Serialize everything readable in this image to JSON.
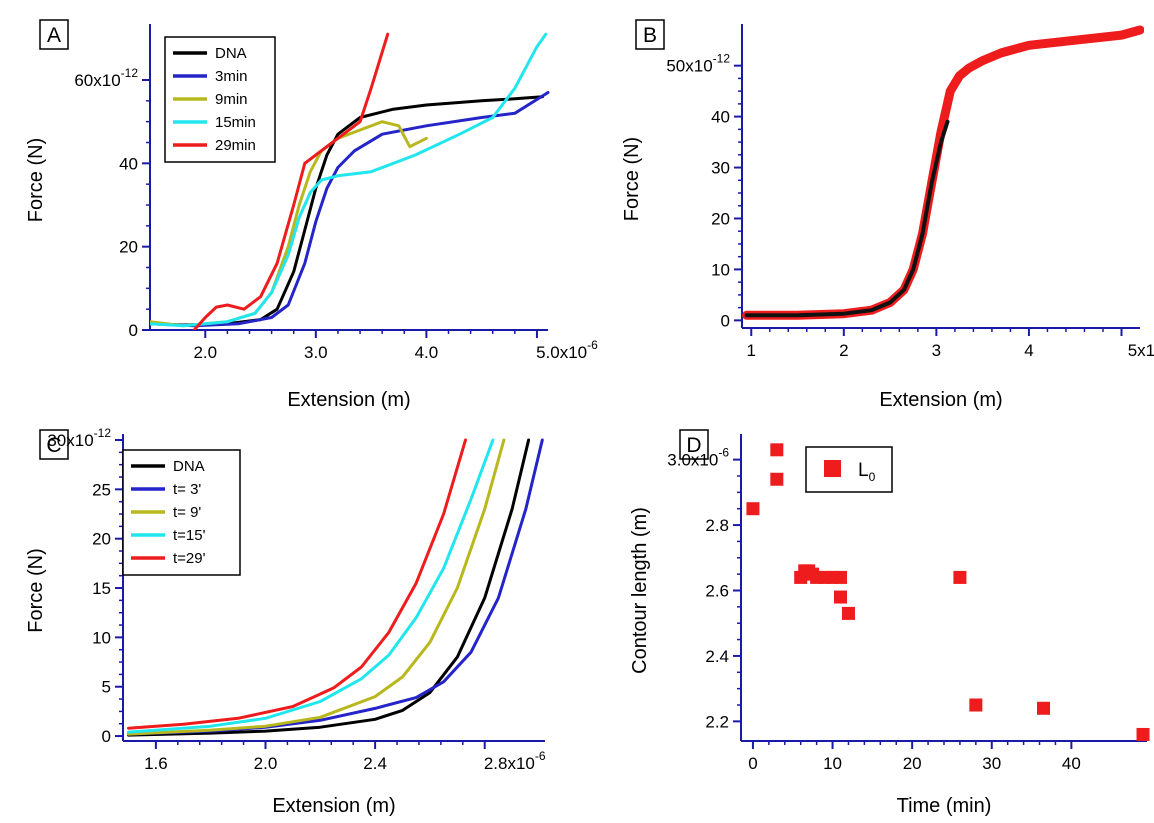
{
  "colors": {
    "axis": "#1a1aa8",
    "DNA": "#000000",
    "3min": "#2424c8",
    "9min": "#b8b81e",
    "15min": "#22e6ee",
    "29min": "#ee1c1c",
    "L0": "#ee1c1c",
    "fitline": "#111111"
  },
  "chart_data": [
    {
      "panel": "A",
      "type": "line",
      "grid": false,
      "legend_position": "top-left",
      "xlabel": "Extension (m)",
      "ylabel": "Force (N)",
      "xlim": [
        1.5e-06,
        5.1e-06
      ],
      "ylim": [
        0,
        7.2e-11
      ],
      "x_ticks": [
        {
          "value": 2e-06,
          "label": "2.0"
        },
        {
          "value": 3e-06,
          "label": "3.0"
        },
        {
          "value": 4e-06,
          "label": "4.0"
        },
        {
          "value": 5e-06,
          "label": "5.0x10",
          "exp": "-6"
        }
      ],
      "y_ticks": [
        {
          "value": 0,
          "label": "0"
        },
        {
          "value": 2e-11,
          "label": "20"
        },
        {
          "value": 4e-11,
          "label": "40"
        },
        {
          "value": 6e-11,
          "label": "60x10",
          "exp": "-12"
        }
      ],
      "series": [
        {
          "name": "DNA",
          "color": "#000000",
          "x": [
            1.5e-06,
            1.8e-06,
            2.2e-06,
            2.5e-06,
            2.65e-06,
            2.8e-06,
            2.9e-06,
            3e-06,
            3.1e-06,
            3.2e-06,
            3.4e-06,
            3.7e-06,
            4e-06,
            4.5e-06,
            4.8e-06,
            5.05e-06
          ],
          "y": [
            1.5e-12,
            1.2e-12,
            1.5e-12,
            2.5e-12,
            5e-12,
            1.4e-11,
            2.4e-11,
            3.4e-11,
            4.2e-11,
            4.7e-11,
            5.1e-11,
            5.3e-11,
            5.4e-11,
            5.5e-11,
            5.55e-11,
            5.6e-11
          ]
        },
        {
          "name": "3min",
          "color": "#2424c8",
          "x": [
            1.5e-06,
            1.9e-06,
            2.3e-06,
            2.6e-06,
            2.75e-06,
            2.9e-06,
            3e-06,
            3.1e-06,
            3.2e-06,
            3.35e-06,
            3.6e-06,
            4e-06,
            4.5e-06,
            4.8e-06,
            5.1e-06
          ],
          "y": [
            1.5e-12,
            1e-12,
            1.5e-12,
            3e-12,
            6e-12,
            1.6e-11,
            2.6e-11,
            3.4e-11,
            3.9e-11,
            4.3e-11,
            4.7e-11,
            4.9e-11,
            5.1e-11,
            5.2e-11,
            5.7e-11
          ]
        },
        {
          "name": "9min",
          "color": "#b8b81e",
          "x": [
            1.5e-06,
            1.8e-06,
            2.2e-06,
            2.45e-06,
            2.6e-06,
            2.75e-06,
            2.85e-06,
            2.95e-06,
            3.05e-06,
            3.2e-06,
            3.4e-06,
            3.6e-06,
            3.75e-06,
            3.85e-06,
            4e-06
          ],
          "y": [
            2e-12,
            1e-12,
            2e-12,
            4e-12,
            9e-12,
            2e-11,
            3e-11,
            3.8e-11,
            4.3e-11,
            4.6e-11,
            4.8e-11,
            5e-11,
            4.9e-11,
            4.4e-11,
            4.6e-11
          ]
        },
        {
          "name": "15min",
          "color": "#22e6ee",
          "x": [
            1.5e-06,
            1.8e-06,
            2.2e-06,
            2.45e-06,
            2.6e-06,
            2.75e-06,
            2.85e-06,
            2.95e-06,
            3.05e-06,
            3.2e-06,
            3.5e-06,
            3.9e-06,
            4.3e-06,
            4.6e-06,
            4.8e-06,
            5e-06,
            5.08e-06
          ],
          "y": [
            1.5e-12,
            1e-12,
            2e-12,
            4e-12,
            9e-12,
            1.8e-11,
            2.7e-11,
            3.3e-11,
            3.6e-11,
            3.7e-11,
            3.8e-11,
            4.2e-11,
            4.7e-11,
            5.1e-11,
            5.8e-11,
            6.8e-11,
            7.1e-11
          ]
        },
        {
          "name": "29min",
          "color": "#ee1c1c",
          "x": [
            1.9e-06,
            2e-06,
            2.1e-06,
            2.2e-06,
            2.35e-06,
            2.5e-06,
            2.65e-06,
            2.8e-06,
            2.9e-06,
            3e-06,
            3.2e-06,
            3.4e-06,
            3.5e-06,
            3.65e-06
          ],
          "y": [
            0,
            3e-12,
            5.5e-12,
            6e-12,
            5e-12,
            8e-12,
            1.6e-11,
            3e-11,
            4e-11,
            4.2e-11,
            4.6e-11,
            5e-11,
            5.8e-11,
            7.1e-11
          ]
        }
      ]
    },
    {
      "panel": "B",
      "type": "line",
      "grid": false,
      "xlabel": "Extension (m)",
      "ylabel": "Force (N)",
      "xlim": [
        9e-07,
        5.2e-06
      ],
      "ylim": [
        -1.5e-12,
        5.7e-11
      ],
      "x_ticks": [
        {
          "value": 1e-06,
          "label": "1"
        },
        {
          "value": 2e-06,
          "label": "2"
        },
        {
          "value": 3e-06,
          "label": "3"
        },
        {
          "value": 4e-06,
          "label": "4"
        },
        {
          "value": 5e-06,
          "label": "5x10",
          "exp": "-6"
        }
      ],
      "y_ticks": [
        {
          "value": 0,
          "label": "0"
        },
        {
          "value": 1e-11,
          "label": "10"
        },
        {
          "value": 2e-11,
          "label": "20"
        },
        {
          "value": 3e-11,
          "label": "30"
        },
        {
          "value": 4e-11,
          "label": "40"
        },
        {
          "value": 5e-11,
          "label": "50x10",
          "exp": "-12"
        }
      ],
      "series": [
        {
          "name": "",
          "color": "#ee1c1c",
          "x": [
            9.5e-07,
            1.5e-06,
            2e-06,
            2.3e-06,
            2.5e-06,
            2.65e-06,
            2.75e-06,
            2.85e-06,
            2.95e-06,
            3.05e-06,
            3.15e-06,
            3.25e-06,
            3.35e-06,
            3.5e-06,
            3.7e-06,
            4e-06,
            4.5e-06,
            5e-06,
            5.2e-06
          ],
          "y": [
            1e-12,
            1e-12,
            1.3e-12,
            2e-12,
            3.5e-12,
            6e-12,
            1e-11,
            1.7e-11,
            2.7e-11,
            3.7e-11,
            4.5e-11,
            4.8e-11,
            4.95e-11,
            5.1e-11,
            5.25e-11,
            5.4e-11,
            5.5e-11,
            5.6e-11,
            5.7e-11
          ]
        },
        {
          "name": "",
          "color": "#111111",
          "x": [
            9.5e-07,
            1.5e-06,
            2e-06,
            2.3e-06,
            2.5e-06,
            2.65e-06,
            2.75e-06,
            2.85e-06,
            2.95e-06,
            3.05e-06,
            3.12e-06
          ],
          "y": [
            1e-12,
            1e-12,
            1.3e-12,
            2e-12,
            3.5e-12,
            6e-12,
            1e-11,
            1.7e-11,
            2.7e-11,
            3.5e-11,
            3.9e-11
          ]
        }
      ]
    },
    {
      "panel": "C",
      "type": "line",
      "grid": false,
      "legend_position": "top-left",
      "xlabel": "Extension (m)",
      "ylabel": "Force (N)",
      "xlim": [
        1.48e-06,
        3.02e-06
      ],
      "ylim": [
        -5e-13,
        3e-11
      ],
      "x_ticks": [
        {
          "value": 1.6e-06,
          "label": "1.6"
        },
        {
          "value": 2e-06,
          "label": "2.0"
        },
        {
          "value": 2.4e-06,
          "label": "2.4"
        },
        {
          "value": 2.8e-06,
          "label": "2.8x10",
          "exp": "-6"
        }
      ],
      "y_ticks": [
        {
          "value": 0,
          "label": "0"
        },
        {
          "value": 5e-12,
          "label": "5"
        },
        {
          "value": 1e-11,
          "label": "10"
        },
        {
          "value": 1.5e-11,
          "label": "15"
        },
        {
          "value": 2e-11,
          "label": "20"
        },
        {
          "value": 2.5e-11,
          "label": "25"
        },
        {
          "value": 3e-11,
          "label": "30x10",
          "exp": "-12"
        }
      ],
      "series": [
        {
          "name": "DNA",
          "color": "#000000",
          "x": [
            1.5e-06,
            1.8e-06,
            2e-06,
            2.2e-06,
            2.4e-06,
            2.5e-06,
            2.6e-06,
            2.7e-06,
            2.8e-06,
            2.9e-06,
            2.96e-06
          ],
          "y": [
            1e-13,
            3e-13,
            5e-13,
            9e-13,
            1.7e-12,
            2.6e-12,
            4.4e-12,
            8e-12,
            1.4e-11,
            2.3e-11,
            3e-11
          ]
        },
        {
          "name": "t= 3'",
          "color": "#2424c8",
          "x": [
            1.5e-06,
            1.8e-06,
            2e-06,
            2.2e-06,
            2.4e-06,
            2.55e-06,
            2.65e-06,
            2.75e-06,
            2.85e-06,
            2.95e-06,
            3.01e-06
          ],
          "y": [
            2e-13,
            5e-13,
            9e-13,
            1.6e-12,
            2.8e-12,
            3.9e-12,
            5.5e-12,
            8.5e-12,
            1.4e-11,
            2.3e-11,
            3e-11
          ]
        },
        {
          "name": "t= 9'",
          "color": "#b8b81e",
          "x": [
            1.5e-06,
            1.8e-06,
            2e-06,
            2.2e-06,
            2.4e-06,
            2.5e-06,
            2.6e-06,
            2.7e-06,
            2.8e-06,
            2.87e-06
          ],
          "y": [
            2e-13,
            6e-13,
            1e-12,
            1.9e-12,
            4e-12,
            6e-12,
            9.5e-12,
            1.5e-11,
            2.3e-11,
            3e-11
          ]
        },
        {
          "name": "t=15'",
          "color": "#22e6ee",
          "x": [
            1.5e-06,
            1.8e-06,
            2e-06,
            2.2e-06,
            2.35e-06,
            2.45e-06,
            2.55e-06,
            2.65e-06,
            2.75e-06,
            2.83e-06
          ],
          "y": [
            4e-13,
            1e-12,
            1.8e-12,
            3.5e-12,
            5.8e-12,
            8.2e-12,
            1.2e-11,
            1.7e-11,
            2.4e-11,
            3e-11
          ]
        },
        {
          "name": "t=29'",
          "color": "#ee1c1c",
          "x": [
            1.5e-06,
            1.7e-06,
            1.9e-06,
            2.1e-06,
            2.25e-06,
            2.35e-06,
            2.45e-06,
            2.55e-06,
            2.65e-06,
            2.73e-06
          ],
          "y": [
            8e-13,
            1.2e-12,
            1.8e-12,
            3e-12,
            4.9e-12,
            7e-12,
            1.05e-11,
            1.55e-11,
            2.25e-11,
            3e-11
          ]
        }
      ]
    },
    {
      "panel": "D",
      "type": "scatter",
      "grid": false,
      "legend_position": "top",
      "xlabel": "Time (min)",
      "ylabel": "Contour length (m)",
      "xlim": [
        -1.5,
        49.5
      ],
      "ylim": [
        2.14e-06,
        3.06e-06
      ],
      "x_ticks": [
        {
          "value": 0,
          "label": "0"
        },
        {
          "value": 10,
          "label": "10"
        },
        {
          "value": 20,
          "label": "20"
        },
        {
          "value": 30,
          "label": "30"
        },
        {
          "value": 40,
          "label": "40"
        }
      ],
      "y_ticks": [
        {
          "value": 2.2e-06,
          "label": "2.2"
        },
        {
          "value": 2.4e-06,
          "label": "2.4"
        },
        {
          "value": 2.6e-06,
          "label": "2.6"
        },
        {
          "value": 2.8e-06,
          "label": "2.8"
        },
        {
          "value": 3e-06,
          "label": "3.0x10",
          "exp": "-6"
        }
      ],
      "series": [
        {
          "name": "L0",
          "color": "#ee1c1c",
          "x": [
            0,
            3,
            3,
            6,
            6.5,
            7,
            7.5,
            8,
            9,
            10,
            11,
            11,
            12,
            26,
            28,
            36.5,
            49
          ],
          "y": [
            2.85e-06,
            3.03e-06,
            2.94e-06,
            2.64e-06,
            2.66e-06,
            2.66e-06,
            2.65e-06,
            2.64e-06,
            2.64e-06,
            2.64e-06,
            2.64e-06,
            2.58e-06,
            2.53e-06,
            2.64e-06,
            2.25e-06,
            2.24e-06,
            2.16e-06
          ]
        }
      ]
    }
  ],
  "panels": [
    {
      "letter": "A",
      "legend": [
        {
          "label": "DNA",
          "key": "DNA"
        },
        {
          "label": "3min",
          "key": "3min"
        },
        {
          "label": "9min",
          "key": "9min"
        },
        {
          "label": "15min",
          "key": "15min"
        },
        {
          "label": "29min",
          "key": "29min"
        }
      ]
    },
    {
      "letter": "B",
      "legend": []
    },
    {
      "letter": "C",
      "legend": [
        {
          "label": "DNA",
          "key": "DNA"
        },
        {
          "label": "t= 3'",
          "key": "3min"
        },
        {
          "label": "t= 9'",
          "key": "9min"
        },
        {
          "label": "t=15'",
          "key": "15min"
        },
        {
          "label": "t=29'",
          "key": "29min"
        }
      ]
    },
    {
      "letter": "D",
      "legend": [
        {
          "label": "L",
          "sub": "0",
          "key": "L0"
        }
      ]
    }
  ]
}
